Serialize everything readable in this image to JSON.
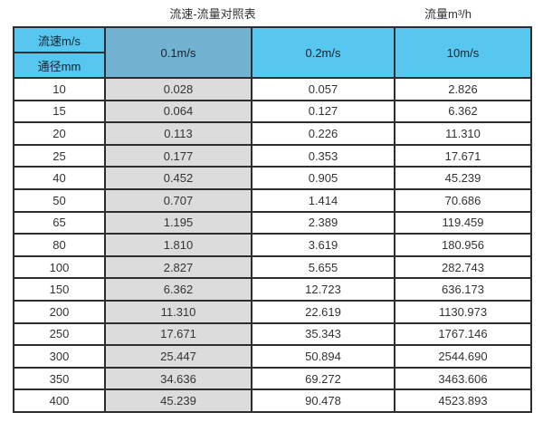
{
  "titles": {
    "main": "流速-流量对照表",
    "unit": "流量m³/h"
  },
  "chart_data": {
    "type": "table",
    "title": "流速-流量对照表",
    "unit_label": "流量m³/h",
    "corner_top": "流速m/s",
    "corner_bottom": "通径mm",
    "columns": [
      "0.1m/s",
      "0.2m/s",
      "10m/s"
    ],
    "rows": [
      {
        "diameter": "10",
        "values": [
          "0.028",
          "0.057",
          "2.826"
        ]
      },
      {
        "diameter": "15",
        "values": [
          "0.064",
          "0.127",
          "6.362"
        ]
      },
      {
        "diameter": "20",
        "values": [
          "0.113",
          "0.226",
          "11.310"
        ]
      },
      {
        "diameter": "25",
        "values": [
          "0.177",
          "0.353",
          "17.671"
        ]
      },
      {
        "diameter": "40",
        "values": [
          "0.452",
          "0.905",
          "45.239"
        ]
      },
      {
        "diameter": "50",
        "values": [
          "0.707",
          "1.414",
          "70.686"
        ]
      },
      {
        "diameter": "65",
        "values": [
          "1.195",
          "2.389",
          "119.459"
        ]
      },
      {
        "diameter": "80",
        "values": [
          "1.810",
          "3.619",
          "180.956"
        ]
      },
      {
        "diameter": "100",
        "values": [
          "2.827",
          "5.655",
          "282.743"
        ]
      },
      {
        "diameter": "150",
        "values": [
          "6.362",
          "12.723",
          "636.173"
        ]
      },
      {
        "diameter": "200",
        "values": [
          "11.310",
          "22.619",
          "1130.973"
        ]
      },
      {
        "diameter": "250",
        "values": [
          "17.671",
          "35.343",
          "1767.146"
        ]
      },
      {
        "diameter": "300",
        "values": [
          "25.447",
          "50.894",
          "2544.690"
        ]
      },
      {
        "diameter": "350",
        "values": [
          "34.636",
          "69.272",
          "3463.606"
        ]
      },
      {
        "diameter": "400",
        "values": [
          "45.239",
          "90.478",
          "4523.893"
        ]
      }
    ]
  },
  "colors": {
    "header_cyan": "#58c7ef",
    "header_steel_blue": "#72b3d1",
    "first_value_column_gray": "#dcdcdc",
    "grid_line": "#2e2e2e",
    "text": "#333333"
  }
}
